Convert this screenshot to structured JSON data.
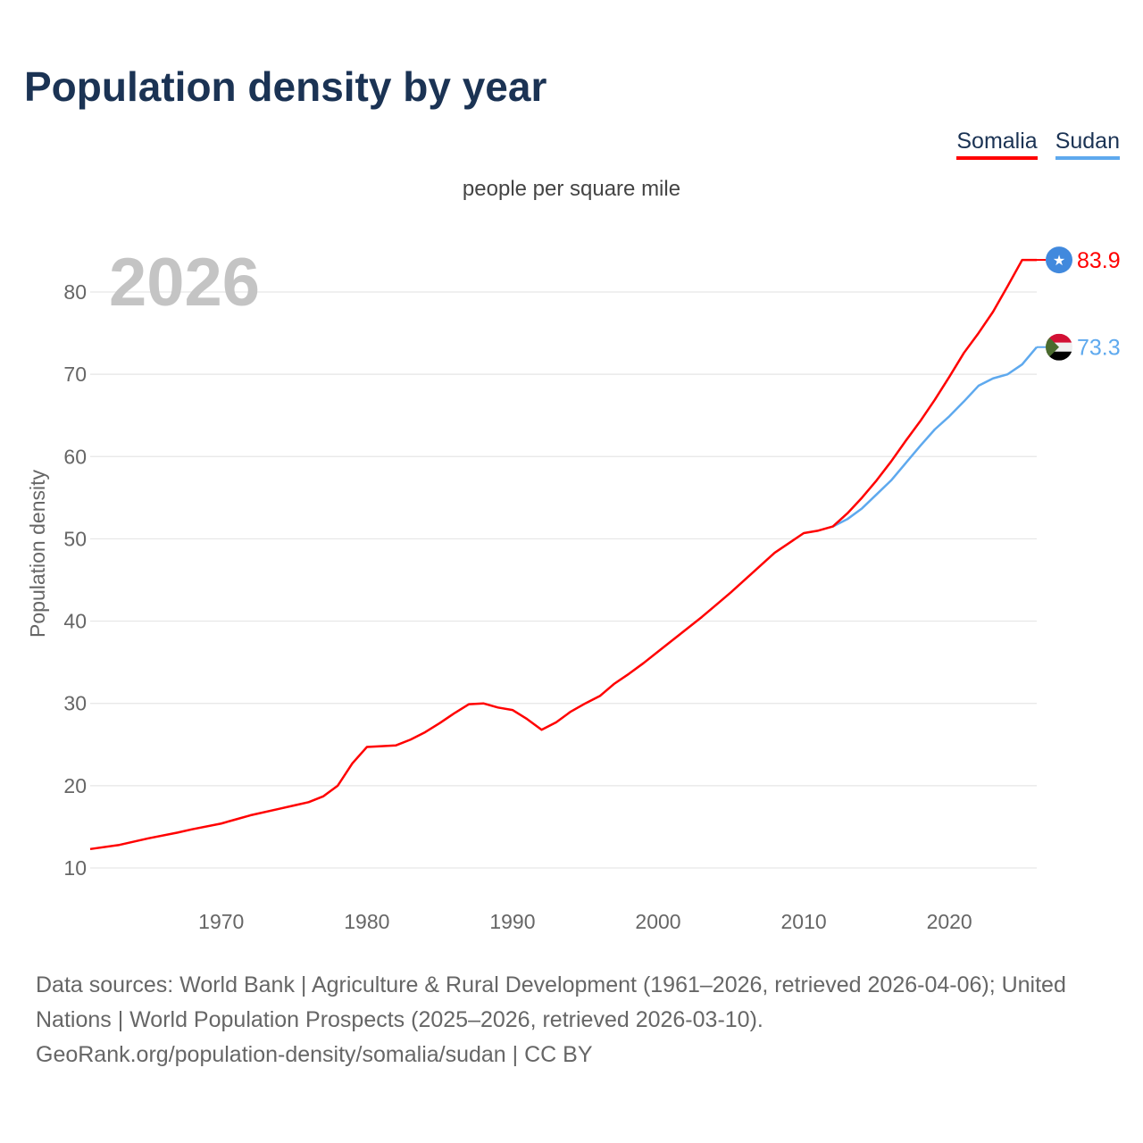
{
  "title": "Population density by year",
  "unit": "people per square mile",
  "year_badge": "2026",
  "legend": [
    {
      "label": "Somalia",
      "color": "#ff0000"
    },
    {
      "label": "Sudan",
      "color": "#5ea9ee"
    }
  ],
  "chart_data": {
    "type": "line",
    "title": "Population density by year",
    "subtitle": "people per square mile",
    "xlabel": "",
    "ylabel": "Population density",
    "xlim": [
      1961,
      2026
    ],
    "ylim": [
      10,
      85
    ],
    "xticks": [
      1970,
      1980,
      1990,
      2000,
      2010,
      2020
    ],
    "yticks": [
      10,
      20,
      30,
      40,
      50,
      60,
      70,
      80
    ],
    "grid": true,
    "legend_position": "top-right",
    "series": [
      {
        "name": "Somalia",
        "color": "#ff0000",
        "end_label": "83.9",
        "x": [
          1961,
          1963,
          1965,
          1967,
          1968,
          1970,
          1971,
          1972,
          1974,
          1975,
          1976,
          1977,
          1978,
          1979,
          1980,
          1981,
          1982,
          1983,
          1984,
          1985,
          1986,
          1987,
          1988,
          1989,
          1990,
          1991,
          1992,
          1993,
          1994,
          1995,
          1996,
          1997,
          1998,
          1999,
          2000,
          2001,
          2002,
          2003,
          2004,
          2005,
          2006,
          2007,
          2008,
          2009,
          2010,
          2011,
          2012,
          2013,
          2014,
          2015,
          2016,
          2017,
          2018,
          2019,
          2020,
          2021,
          2022,
          2023,
          2024,
          2025,
          2026
        ],
        "y": [
          12.3,
          12.8,
          13.6,
          14.3,
          14.7,
          15.4,
          15.9,
          16.4,
          17.2,
          17.6,
          18.0,
          18.7,
          20.0,
          22.7,
          24.7,
          24.8,
          24.9,
          25.6,
          26.5,
          27.6,
          28.8,
          29.9,
          30.0,
          29.5,
          29.2,
          28.1,
          26.8,
          27.7,
          29.0,
          30.0,
          30.9,
          32.4,
          33.6,
          34.9,
          36.3,
          37.7,
          39.1,
          40.5,
          42.0,
          43.5,
          45.1,
          46.7,
          48.3,
          49.5,
          50.7,
          51.0,
          51.5,
          53.1,
          55.0,
          57.1,
          59.4,
          61.9,
          64.3,
          66.9,
          69.7,
          72.6,
          75.0,
          77.6,
          80.7,
          83.9,
          83.9
        ]
      },
      {
        "name": "Sudan",
        "color": "#5ea9ee",
        "end_label": "73.3",
        "x": [
          2012,
          2013,
          2014,
          2015,
          2016,
          2017,
          2018,
          2019,
          2020,
          2021,
          2022,
          2023,
          2024,
          2025,
          2026
        ],
        "y": [
          51.5,
          52.4,
          53.7,
          55.4,
          57.1,
          59.2,
          61.3,
          63.3,
          64.9,
          66.7,
          68.6,
          69.5,
          70.0,
          71.2,
          73.3
        ]
      }
    ]
  },
  "source": {
    "line1": "Data sources: World Bank | Agriculture & Rural Development (1961–2026, retrieved 2026-04-06); United Nations | World Population Prospects (2025–2026, retrieved 2026-03-10).",
    "line2": "GeoRank.org/population-density/somalia/sudan | CC BY"
  }
}
